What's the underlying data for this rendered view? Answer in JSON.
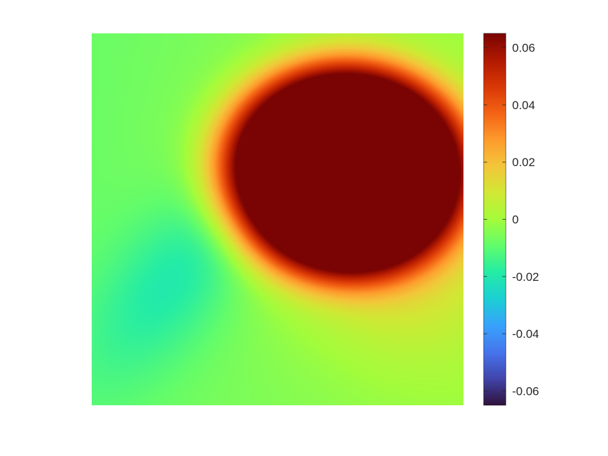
{
  "chart_data": {
    "type": "heatmap",
    "title": "",
    "xlabel": "",
    "ylabel": "",
    "colormap": "turbo",
    "clim": [
      -0.065,
      0.065
    ],
    "axes_visible": false,
    "colorbar": {
      "location": "right",
      "ticks": [
        0.06,
        0.04,
        0.02,
        0,
        -0.02,
        -0.04,
        -0.06
      ],
      "tick_labels": [
        "0.06",
        "0.04",
        "0.02",
        "0",
        "-0.02",
        "-0.04",
        "-0.06"
      ]
    },
    "field_features": [
      {
        "kind": "saturated-max",
        "center": [
          0.68,
          0.63
        ],
        "radius_x": 0.22,
        "radius_y": 0.19,
        "value": 0.065
      },
      {
        "kind": "min",
        "center": [
          0.24,
          0.36
        ],
        "value": -0.018
      },
      {
        "kind": "background",
        "value": -0.008
      }
    ],
    "colors": {
      "turbo_stops": [
        "#30123b",
        "#4145ab",
        "#4675ed",
        "#39a2fc",
        "#1bcfd4",
        "#24eca6",
        "#61fc6c",
        "#a4fc3b",
        "#d1e834",
        "#f3c63a",
        "#fe9b2d",
        "#f36315",
        "#d93806",
        "#b11901",
        "#7a0403"
      ]
    }
  }
}
